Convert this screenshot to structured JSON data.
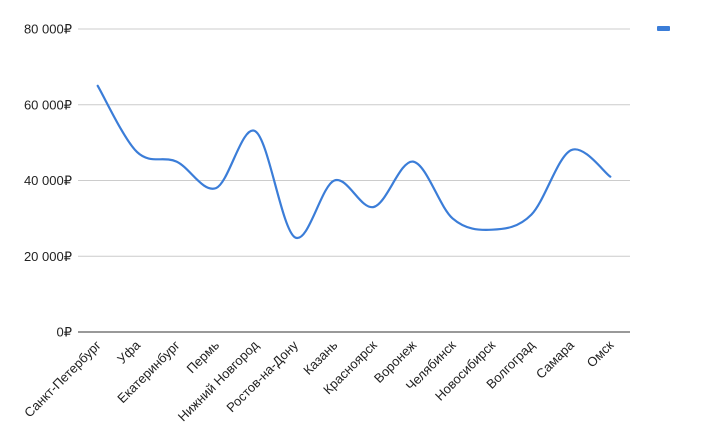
{
  "chart_data": {
    "type": "line",
    "title": "",
    "xlabel": "",
    "ylabel": "",
    "ylim": [
      0,
      80000
    ],
    "y_ticks": [
      0,
      20000,
      40000,
      60000,
      80000
    ],
    "y_tick_labels": [
      "0₽",
      "20 000₽",
      "40 000₽",
      "60 000₽",
      "80 000₽"
    ],
    "grid": true,
    "legend": "top-right",
    "smooth": true,
    "categories": [
      "Санкт-Петербург",
      "Уфа",
      "Екатеринбург",
      "Пермь",
      "Нижний Новгород",
      "Ростов-на-Дону",
      "Казань",
      "Красноярск",
      "Воронеж",
      "Челябинск",
      "Новосибирск",
      "Волгоград",
      "Самара",
      "Омск"
    ],
    "series": [
      {
        "color": "#3b7dd8",
        "values": [
          65000,
          47500,
          45000,
          38000,
          53000,
          25000,
          40000,
          33000,
          45000,
          30000,
          27000,
          31000,
          48000,
          41000
        ]
      }
    ]
  }
}
